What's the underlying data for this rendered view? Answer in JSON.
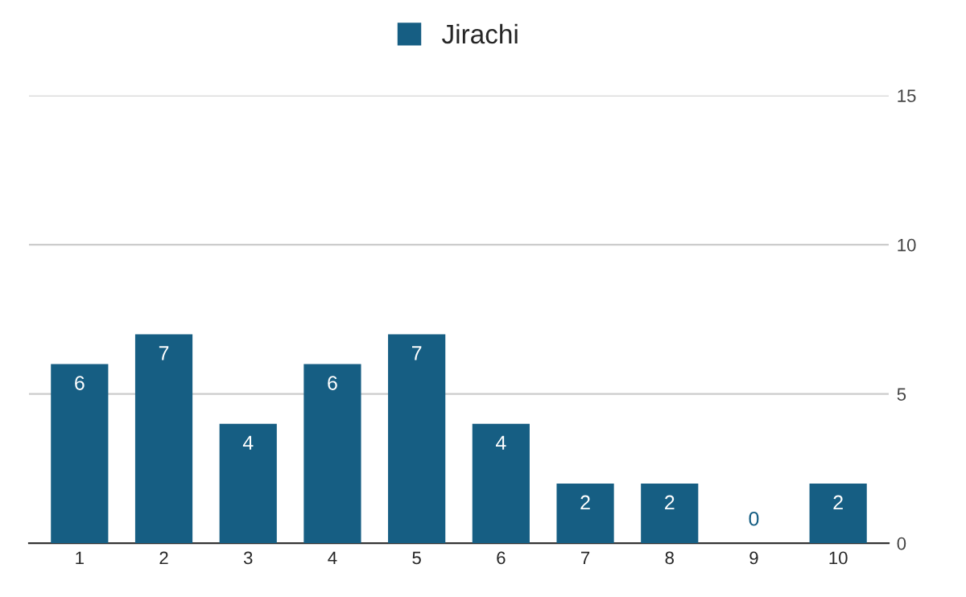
{
  "chart_data": {
    "type": "bar",
    "categories": [
      "1",
      "2",
      "3",
      "4",
      "5",
      "6",
      "7",
      "8",
      "9",
      "10"
    ],
    "series": [
      {
        "name": "Jirachi",
        "color": "#165e83",
        "values": [
          6,
          7,
          4,
          6,
          7,
          4,
          2,
          2,
          0,
          2
        ]
      }
    ],
    "ylim": [
      0,
      15
    ],
    "yticks": [
      0,
      5,
      10,
      15
    ],
    "grid": "y",
    "legend": "top",
    "data_labels": true
  }
}
